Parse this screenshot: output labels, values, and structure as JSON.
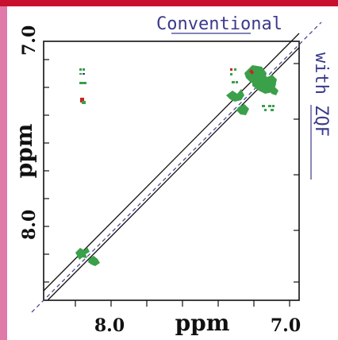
{
  "figure": {
    "x_axis": {
      "label": "ppm",
      "ticks": [
        {
          "value": 8.0,
          "label": "8.0"
        },
        {
          "value": 7.0,
          "label": "7.0"
        }
      ],
      "range": [
        8.5,
        6.9
      ]
    },
    "y_axis": {
      "label": "ppm",
      "ticks": [
        {
          "value": 7.0,
          "label": "7.0"
        },
        {
          "value": 8.0,
          "label": "8.0"
        }
      ],
      "range": [
        6.85,
        8.35
      ]
    },
    "annotations": {
      "conventional": "Conventional",
      "with_zqf": "with ZQF"
    },
    "colors": {
      "accent_top": "#c8102e",
      "accent_left": "#e07aa8",
      "peaks_positive": "#3aa04a",
      "peaks_negative": "#cc2222",
      "annotation": "#3a3a8c"
    }
  }
}
